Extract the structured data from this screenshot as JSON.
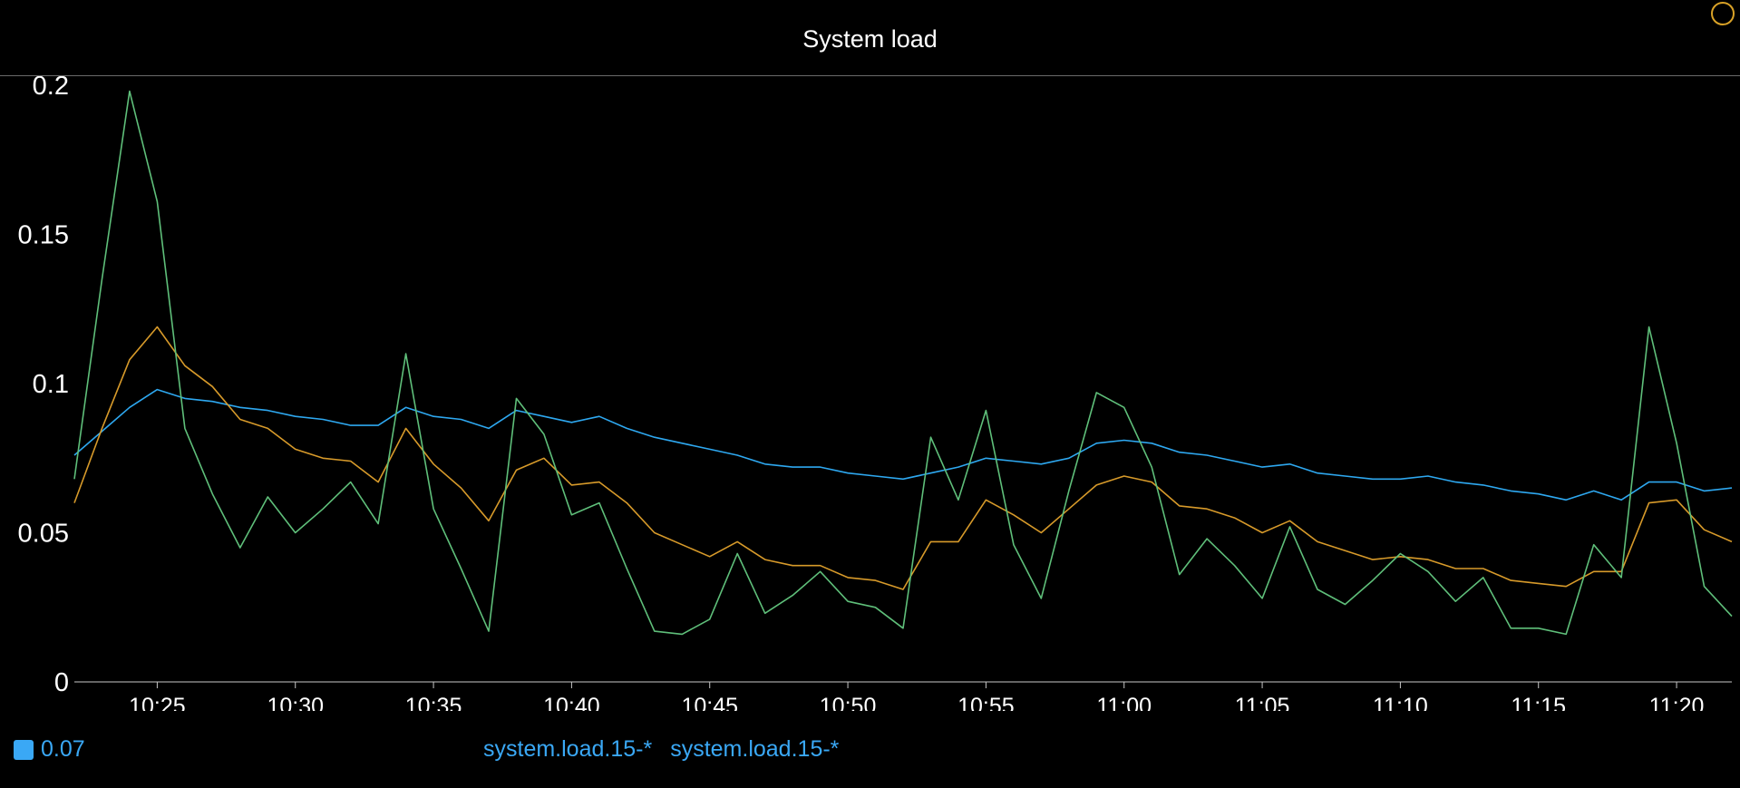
{
  "panel": {
    "title": "System load"
  },
  "legend": {
    "current_value": "0.07",
    "series_labels": [
      "system.load.15-*",
      "system.load.15-*"
    ]
  },
  "colors": {
    "background": "#000000",
    "axis": "#c8c8c8",
    "accent": "#3aa8f5"
  },
  "icons": {
    "corner": "circle-icon"
  },
  "chart_data": {
    "type": "line",
    "title": "System load",
    "xlabel": "",
    "ylabel": "",
    "ylim": [
      0,
      0.2
    ],
    "yticks": [
      0,
      0.05,
      0.1,
      0.15,
      0.2
    ],
    "ytick_labels": [
      "0",
      "0.05",
      "0.1",
      "0.15",
      "0.2"
    ],
    "xticks": [
      "10:25",
      "10:30",
      "10:35",
      "10:40",
      "10:45",
      "10:50",
      "10:55",
      "11:00",
      "11:05",
      "11:10",
      "11:15",
      "11:20"
    ],
    "x_start": "10:22",
    "x_end": "11:22",
    "grid": false,
    "legend_position": "bottom-left",
    "series": [
      {
        "color": "#2ea8f0",
        "values": [
          0.076,
          0.084,
          0.092,
          0.098,
          0.095,
          0.094,
          0.092,
          0.091,
          0.089,
          0.088,
          0.086,
          0.086,
          0.092,
          0.089,
          0.088,
          0.085,
          0.091,
          0.089,
          0.087,
          0.089,
          0.085,
          0.082,
          0.08,
          0.078,
          0.076,
          0.073,
          0.072,
          0.072,
          0.07,
          0.069,
          0.068,
          0.07,
          0.072,
          0.075,
          0.074,
          0.073,
          0.075,
          0.08,
          0.081,
          0.08,
          0.077,
          0.076,
          0.074,
          0.072,
          0.073,
          0.07,
          0.069,
          0.068,
          0.068,
          0.069,
          0.067,
          0.066,
          0.064,
          0.063,
          0.061,
          0.064,
          0.061,
          0.067,
          0.067,
          0.064,
          0.065
        ]
      },
      {
        "color": "#d79a2a",
        "values": [
          0.06,
          0.085,
          0.108,
          0.119,
          0.106,
          0.099,
          0.088,
          0.085,
          0.078,
          0.075,
          0.074,
          0.067,
          0.085,
          0.073,
          0.065,
          0.054,
          0.071,
          0.075,
          0.066,
          0.067,
          0.06,
          0.05,
          0.046,
          0.042,
          0.047,
          0.041,
          0.039,
          0.039,
          0.035,
          0.034,
          0.031,
          0.047,
          0.047,
          0.061,
          0.056,
          0.05,
          0.058,
          0.066,
          0.069,
          0.067,
          0.059,
          0.058,
          0.055,
          0.05,
          0.054,
          0.047,
          0.044,
          0.041,
          0.042,
          0.041,
          0.038,
          0.038,
          0.034,
          0.033,
          0.032,
          0.037,
          0.037,
          0.06,
          0.061,
          0.051,
          0.047
        ]
      },
      {
        "color": "#5fbf7a",
        "values": [
          0.068,
          0.135,
          0.198,
          0.161,
          0.085,
          0.063,
          0.045,
          0.062,
          0.05,
          0.058,
          0.067,
          0.053,
          0.11,
          0.058,
          0.038,
          0.017,
          0.095,
          0.083,
          0.056,
          0.06,
          0.038,
          0.017,
          0.016,
          0.021,
          0.043,
          0.023,
          0.029,
          0.037,
          0.027,
          0.025,
          0.018,
          0.082,
          0.061,
          0.091,
          0.046,
          0.028,
          0.064,
          0.097,
          0.092,
          0.072,
          0.036,
          0.048,
          0.039,
          0.028,
          0.052,
          0.031,
          0.026,
          0.034,
          0.043,
          0.037,
          0.027,
          0.035,
          0.018,
          0.018,
          0.016,
          0.046,
          0.035,
          0.119,
          0.08,
          0.032,
          0.022
        ]
      }
    ]
  }
}
